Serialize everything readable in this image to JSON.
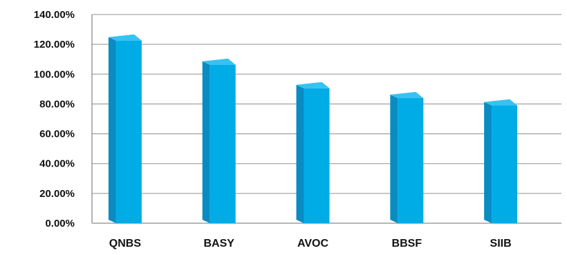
{
  "chart_data": {
    "type": "bar",
    "categories": [
      "QNBS",
      "BASY",
      "AVOC",
      "BBSF",
      "SIIB"
    ],
    "values": [
      122.5,
      106.3,
      90.5,
      83.9,
      79.0
    ],
    "ylim": [
      0,
      140
    ],
    "yticks": [
      "0.00%",
      "20.00%",
      "40.00%",
      "60.00%",
      "80.00%",
      "100.00%",
      "120.00%",
      "140.00%"
    ],
    "grid": true,
    "legend": "none",
    "colors": {
      "bar_front": "#00ace6",
      "bar_side": "#0a8cc2",
      "bar_top": "#36c2f2",
      "gridline": "#a6a6a6",
      "axis": "#8c8c8c"
    }
  }
}
